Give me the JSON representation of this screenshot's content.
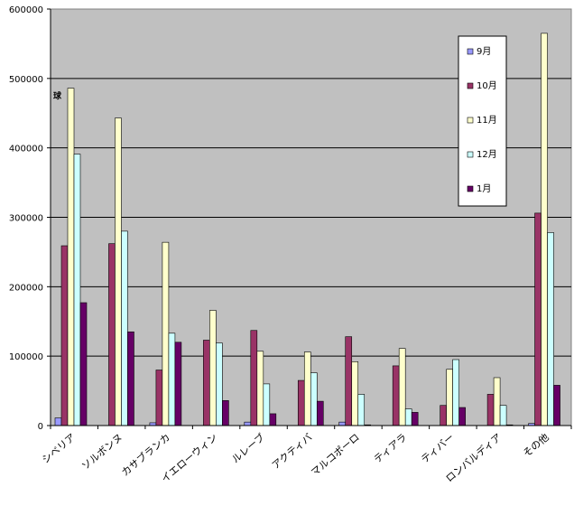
{
  "chart_data": {
    "type": "bar",
    "unit_label": "球",
    "categories": [
      "シベリア",
      "ソルボンヌ",
      "カサブランカ",
      "イエローウィン",
      "ルレーブ",
      "アクティバ",
      "マルコポーロ",
      "ティアラ",
      "ティバー",
      "ロンバルディア",
      "その他"
    ],
    "series": [
      {
        "name": "9月",
        "color": "#9999ff",
        "values": [
          11000,
          0,
          4000,
          0,
          5000,
          0,
          5000,
          0,
          0,
          0,
          3000
        ]
      },
      {
        "name": "10月",
        "color": "#993366",
        "values": [
          259000,
          262000,
          80000,
          123000,
          137000,
          65000,
          128000,
          86000,
          29000,
          45000,
          306000
        ]
      },
      {
        "name": "11月",
        "color": "#ffffcc",
        "values": [
          486000,
          443000,
          264000,
          166000,
          107000,
          106000,
          92000,
          111000,
          81000,
          69000,
          565000
        ]
      },
      {
        "name": "12月",
        "color": "#ccffff",
        "values": [
          391000,
          280000,
          133000,
          119000,
          60000,
          76000,
          45000,
          24000,
          95000,
          29000,
          278000
        ]
      },
      {
        "name": "1月",
        "color": "#660066",
        "values": [
          177000,
          135000,
          120000,
          36000,
          17000,
          35000,
          1000,
          19000,
          26000,
          1000,
          58000
        ]
      }
    ],
    "y_ticks": [
      "0",
      "100000",
      "200000",
      "300000",
      "400000",
      "500000",
      "600000"
    ],
    "ylim": [
      0,
      600000
    ],
    "grid": true,
    "legend_position": "top-right",
    "plot_background": "#c0c0c0",
    "gridline_color": "#000000"
  }
}
